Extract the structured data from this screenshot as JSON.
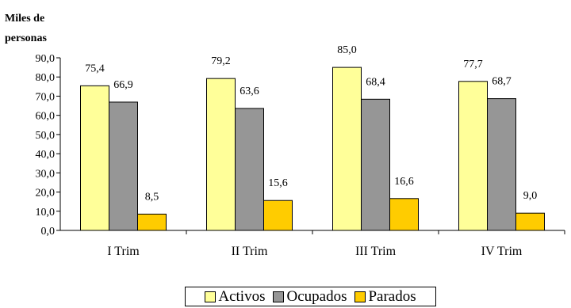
{
  "chart_data": {
    "type": "bar",
    "ylabel": "Miles de personas",
    "ylabel_lines": [
      "Miles de",
      "personas"
    ],
    "categories": [
      "I Trim",
      "II Trim",
      "III Trim",
      "IV Trim"
    ],
    "series": [
      {
        "name": "Activos",
        "color": "#FFFF99",
        "values": [
          75.4,
          79.2,
          85.0,
          77.7
        ],
        "labels": [
          "75,4",
          "79,2",
          "85,0",
          "77,7"
        ]
      },
      {
        "name": "Ocupados",
        "color": "#969696",
        "values": [
          66.9,
          63.6,
          68.4,
          68.7
        ],
        "labels": [
          "66,9",
          "63,6",
          "68,4",
          "68,7"
        ]
      },
      {
        "name": "Parados",
        "color": "#FFCC00",
        "values": [
          8.5,
          15.6,
          16.6,
          9.0
        ],
        "labels": [
          "8,5",
          "15,6",
          "16,6",
          "9,0"
        ]
      }
    ],
    "yticks": [
      "0,0",
      "10,0",
      "20,0",
      "30,0",
      "40,0",
      "50,0",
      "60,0",
      "70,0",
      "80,0",
      "90,0"
    ],
    "ylim": [
      0,
      90
    ],
    "grid": false,
    "legend_position": "bottom"
  }
}
